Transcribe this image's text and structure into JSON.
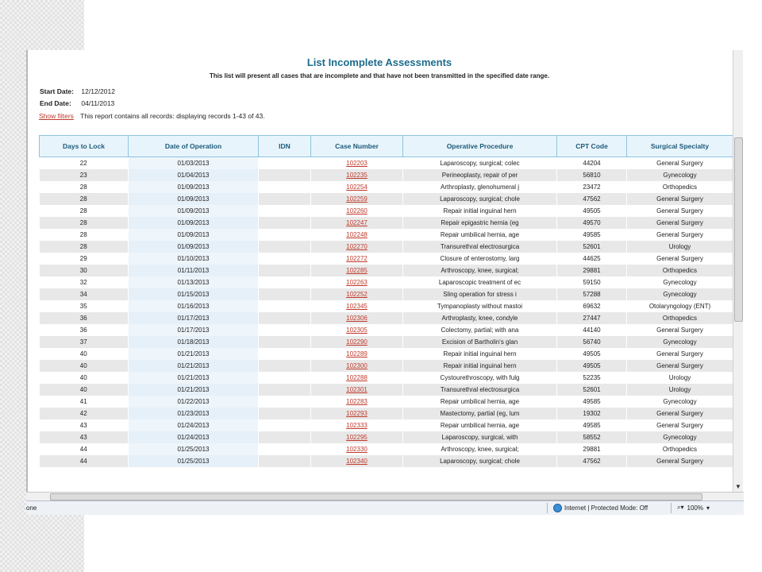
{
  "report": {
    "title": "List Incomplete Assessments",
    "subtitle": "This list will present all cases that are incomplete and that have not been transmitted in the specified date range.",
    "start_label": "Start Date:",
    "start_value": "12/12/2012",
    "end_label": "End Date:",
    "end_value": "04/11/2013",
    "show_filters": "Show filters",
    "records_text": "This report contains all records: displaying records 1-43 of 43."
  },
  "table": {
    "headers": [
      "Days to Lock",
      "Date of Operation",
      "IDN",
      "Case Number",
      "Operative Procedure",
      "CPT Code",
      "Surgical Specialty"
    ],
    "rows": [
      [
        "22",
        "01/03/2013",
        "",
        "102203",
        "Laparoscopy, surgical; colec",
        "44204",
        "General Surgery"
      ],
      [
        "23",
        "01/04/2013",
        "",
        "102235",
        "Perineoplasty, repair of per",
        "56810",
        "Gynecology"
      ],
      [
        "28",
        "01/09/2013",
        "",
        "102254",
        "Arthroplasty, glenohumeral j",
        "23472",
        "Orthopedics"
      ],
      [
        "28",
        "01/09/2013",
        "",
        "102259",
        "Laparoscopy, surgical; chole",
        "47562",
        "General Surgery"
      ],
      [
        "28",
        "01/09/2013",
        "",
        "102260",
        "Repair initial inguinal hern",
        "49505",
        "General Surgery"
      ],
      [
        "28",
        "01/09/2013",
        "",
        "102247",
        "Repair epigastric hernia (eg",
        "49570",
        "General Surgery"
      ],
      [
        "28",
        "01/09/2013",
        "",
        "102248",
        "Repair umbilical hernia, age",
        "49585",
        "General Surgery"
      ],
      [
        "28",
        "01/09/2013",
        "",
        "102270",
        "Transurethral electrosurgica",
        "52601",
        "Urology"
      ],
      [
        "29",
        "01/10/2013",
        "",
        "102272",
        "Closure of enterostomy, larg",
        "44625",
        "General Surgery"
      ],
      [
        "30",
        "01/11/2013",
        "",
        "102285",
        "Arthroscopy, knee, surgical;",
        "29881",
        "Orthopedics"
      ],
      [
        "32",
        "01/13/2013",
        "",
        "102263",
        "Laparoscopic treatment of ec",
        "59150",
        "Gynecology"
      ],
      [
        "34",
        "01/15/2013",
        "",
        "102252",
        "Sling operation for stress i",
        "57288",
        "Gynecology"
      ],
      [
        "35",
        "01/16/2013",
        "",
        "102345",
        "Tympanoplasty without mastoi",
        "69632",
        "Otolaryngology (ENT)"
      ],
      [
        "36",
        "01/17/2013",
        "",
        "102306",
        "Arthroplasty, knee, condyle",
        "27447",
        "Orthopedics"
      ],
      [
        "36",
        "01/17/2013",
        "",
        "102305",
        "Colectomy, partial; with ana",
        "44140",
        "General Surgery"
      ],
      [
        "37",
        "01/18/2013",
        "",
        "102290",
        "Excision of Bartholin's glan",
        "56740",
        "Gynecology"
      ],
      [
        "40",
        "01/21/2013",
        "",
        "102289",
        "Repair initial inguinal hern",
        "49505",
        "General Surgery"
      ],
      [
        "40",
        "01/21/2013",
        "",
        "102300",
        "Repair initial inguinal hern",
        "49505",
        "General Surgery"
      ],
      [
        "40",
        "01/21/2013",
        "",
        "102288",
        "Cystourethroscopy, with fulg",
        "52235",
        "Urology"
      ],
      [
        "40",
        "01/21/2013",
        "",
        "102301",
        "Transurethral electrosurgica",
        "52601",
        "Urology"
      ],
      [
        "41",
        "01/22/2013",
        "",
        "102283",
        "Repair umbilical hernia, age",
        "49585",
        "Gynecology"
      ],
      [
        "42",
        "01/23/2013",
        "",
        "102293",
        "Mastectomy, partial (eg, lum",
        "19302",
        "General Surgery"
      ],
      [
        "43",
        "01/24/2013",
        "",
        "102333",
        "Repair umbilical hernia, age",
        "49585",
        "General Surgery"
      ],
      [
        "43",
        "01/24/2013",
        "",
        "102295",
        "Laparoscopy, surgical, with",
        "58552",
        "Gynecology"
      ],
      [
        "44",
        "01/25/2013",
        "",
        "102330",
        "Arthroscopy, knee, surgical;",
        "29881",
        "Orthopedics"
      ],
      [
        "44",
        "01/25/2013",
        "",
        "102340",
        "Laparoscopy, surgical; chole",
        "47562",
        "General Surgery"
      ]
    ]
  },
  "statusbar": {
    "done": "one",
    "zone": "Internet | Protected Mode: Off",
    "zoom": "100%"
  },
  "colors": {
    "title": "#1c6c8c",
    "link": "#c0392b",
    "header_bg": "#e8f4fb",
    "header_border": "#8ec3de"
  },
  "icons": [
    "globe-icon",
    "lock-zone-icon",
    "zoom-icon",
    "scroll-down-arrow-icon"
  ]
}
